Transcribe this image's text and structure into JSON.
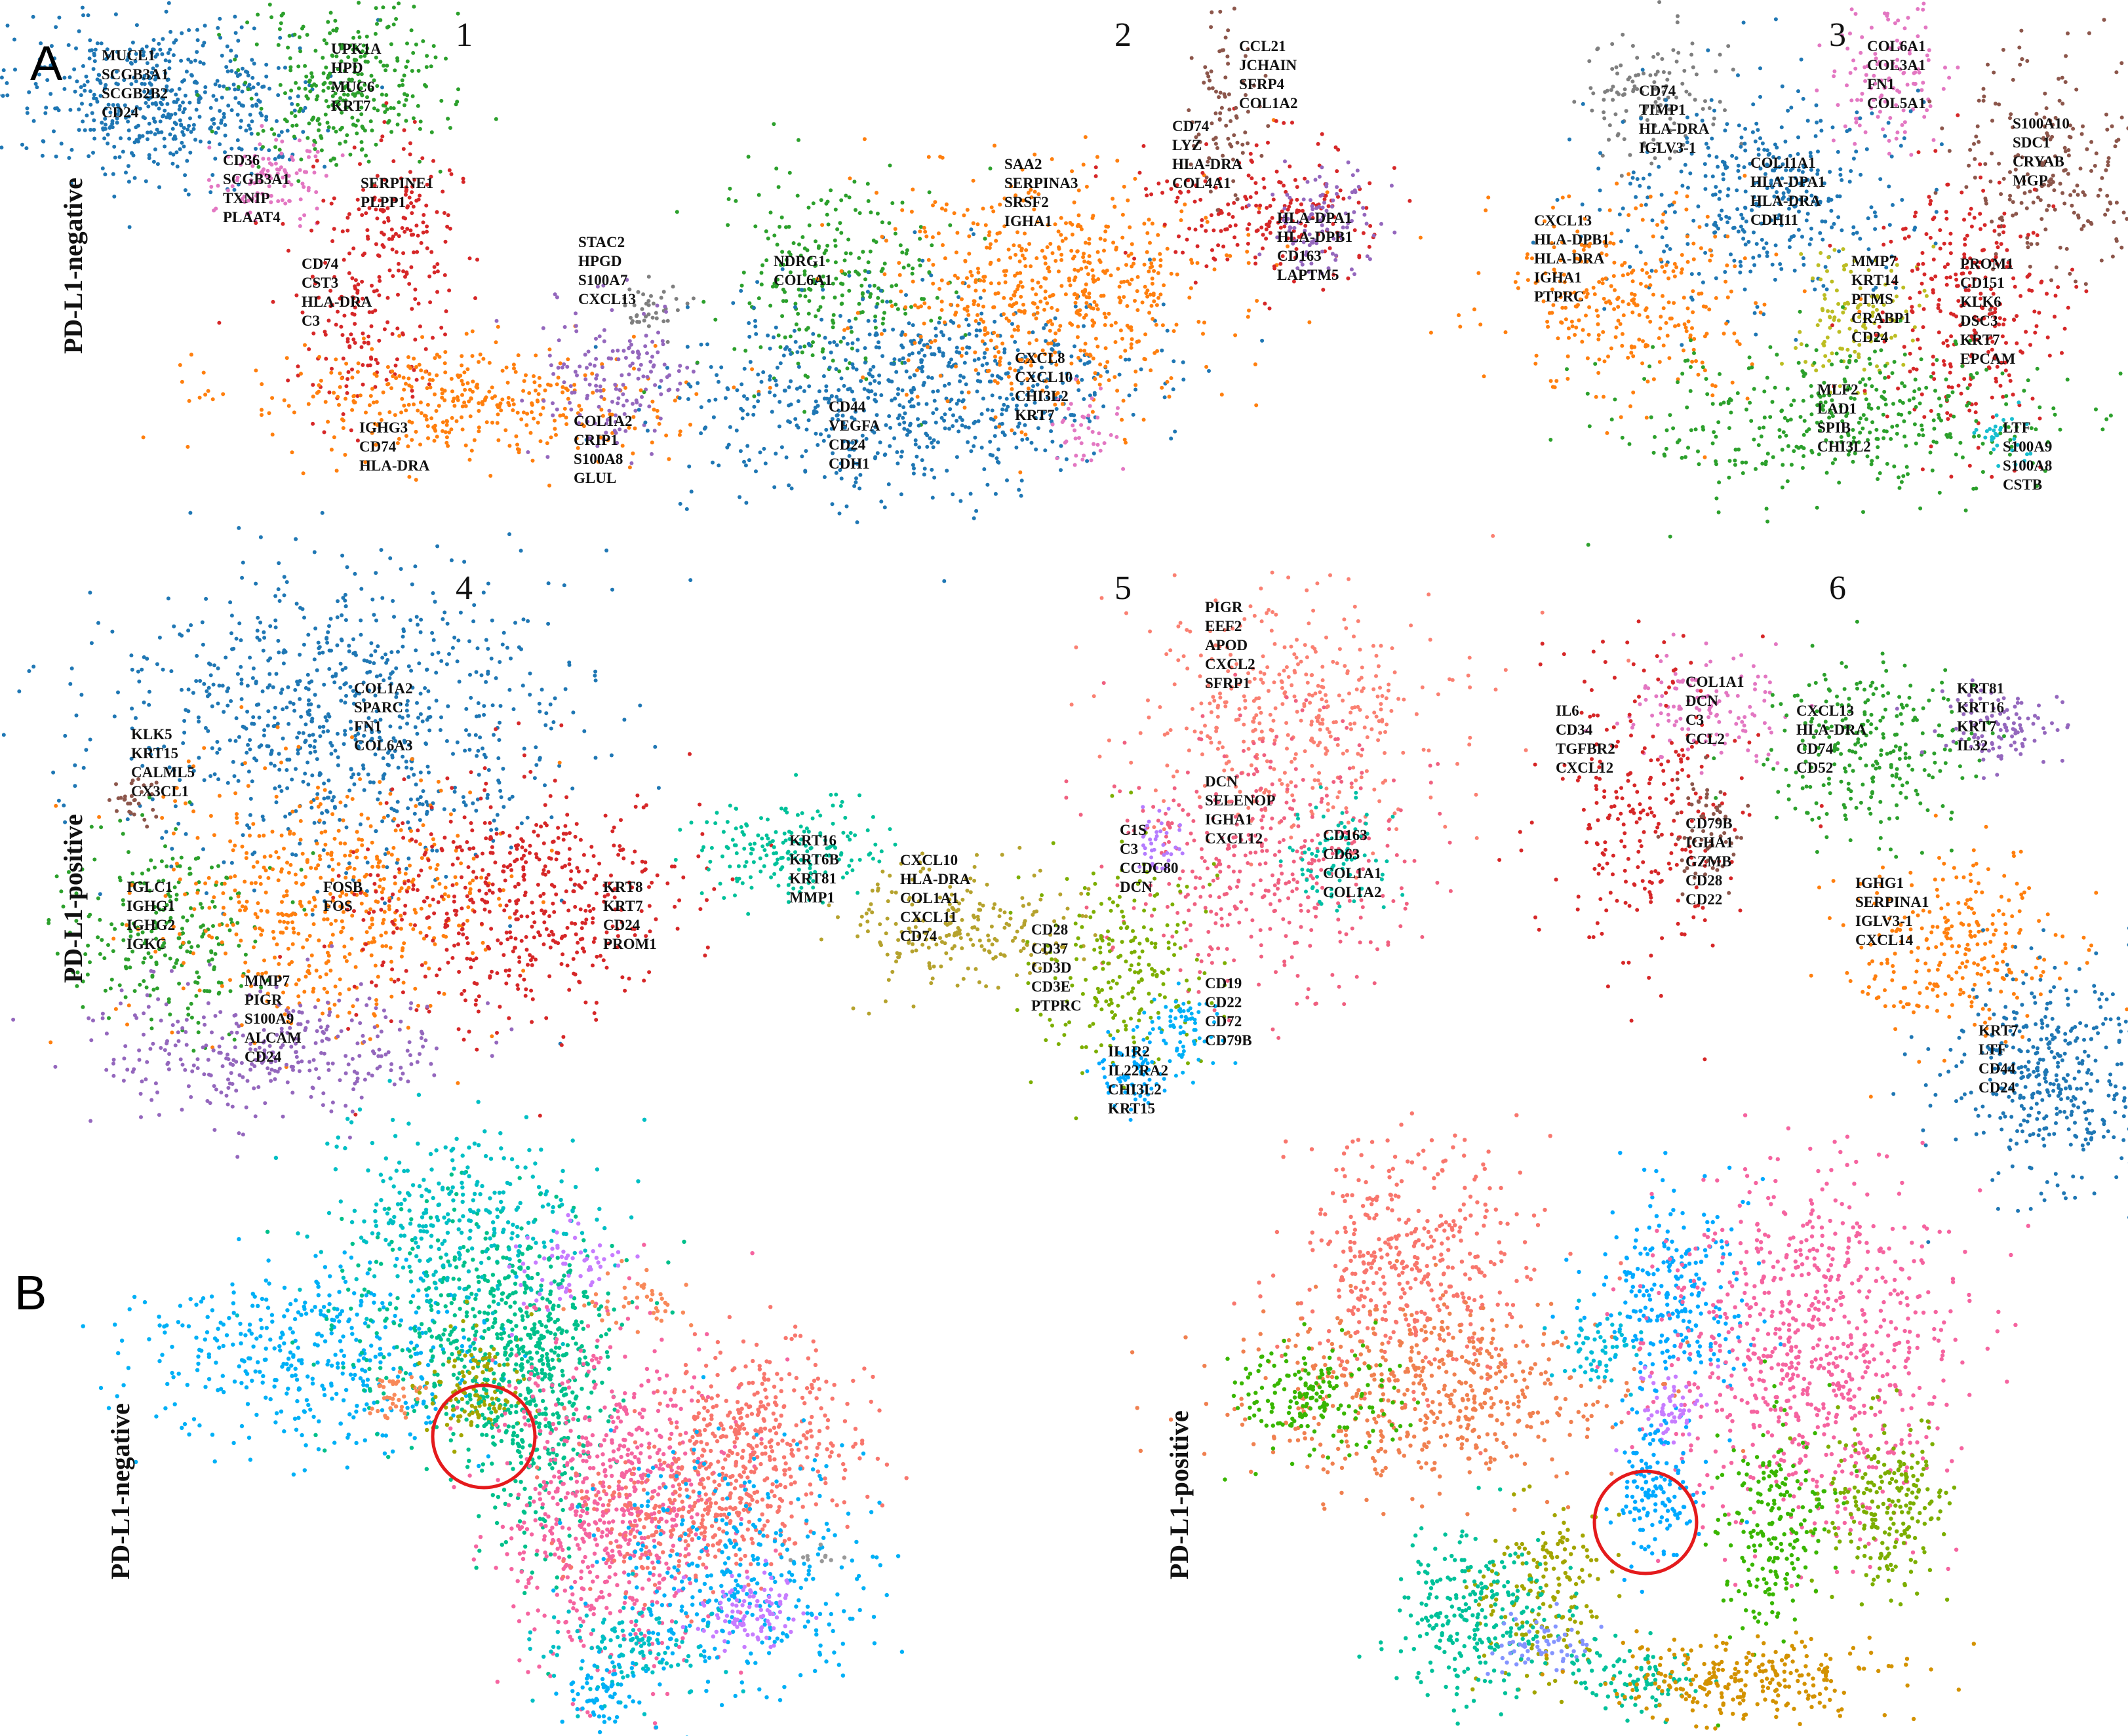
{
  "panel_letters": [
    "A",
    "B"
  ],
  "row_labels": [
    "PD-L1-negative",
    "PD-L1-positive"
  ],
  "chart_data": [
    {
      "type": "scatter",
      "panel": "A",
      "title": "1",
      "clusters": [
        {
          "color": "#1f77b4",
          "genes": [
            "MUCL1",
            "SCGB3A1",
            "SCGB2B2",
            "CD24"
          ]
        },
        {
          "color": "#2ca02c",
          "genes": [
            "UPK1A",
            "HPD",
            "MUC6",
            "KRT7"
          ]
        },
        {
          "color": "#e377c2",
          "genes": [
            "CD36",
            "SCGB3A1",
            "TXNIP",
            "PLAAT4"
          ]
        },
        {
          "color": "#d62728",
          "genes": [
            "SERPINE1",
            "PLPP1"
          ]
        },
        {
          "color": "#d62728",
          "genes": [
            "CD74",
            "CST3",
            "HLA-DRA",
            "C3"
          ]
        },
        {
          "color": "#7f7f7f",
          "genes": [
            "STAC2",
            "HPGD",
            "S100A7",
            "CXCL13"
          ]
        },
        {
          "color": "#ff7f0e",
          "genes": [
            "IGHG3",
            "CD74",
            "HLA-DRA"
          ]
        },
        {
          "color": "#9467bd",
          "genes": [
            "COL1A2",
            "CRIP1",
            "S100A8",
            "GLUL"
          ]
        }
      ]
    },
    {
      "type": "scatter",
      "panel": "A",
      "title": "2",
      "clusters": [
        {
          "color": "#8c564b",
          "genes": [
            "CCL21",
            "JCHAIN",
            "SFRP4",
            "COL1A2"
          ]
        },
        {
          "color": "#d62728",
          "genes": [
            "CD74",
            "LYZ",
            "HLA-DRA",
            "COL4A1"
          ]
        },
        {
          "color": "#ff7f0e",
          "genes": [
            "SAA2",
            "SERPINA3",
            "SRSF2",
            "IGHA1"
          ]
        },
        {
          "color": "#9467bd",
          "genes": [
            "HLA-DPA1",
            "HLA-DPB1",
            "CD163",
            "LAPTM5"
          ]
        },
        {
          "color": "#2ca02c",
          "genes": [
            "NDRG1",
            "COL6A1"
          ]
        },
        {
          "color": "#e377c2",
          "genes": [
            "CXCL8",
            "CXCL10",
            "CHI3L2",
            "KRT7"
          ]
        },
        {
          "color": "#1f77b4",
          "genes": [
            "CD44",
            "VEGFA",
            "CD24",
            "CDH1"
          ]
        }
      ]
    },
    {
      "type": "scatter",
      "panel": "A",
      "title": "3",
      "clusters": [
        {
          "color": "#7f7f7f",
          "genes": [
            "CD74",
            "TIMP1",
            "HLA-DRA",
            "IGLV3-1"
          ]
        },
        {
          "color": "#e377c2",
          "genes": [
            "COL6A1",
            "COL3A1",
            "FN1",
            "COL5A1"
          ]
        },
        {
          "color": "#8c564b",
          "genes": [
            "S100A10",
            "SDC1",
            "CRYAB",
            "MGP"
          ]
        },
        {
          "color": "#1f77b4",
          "genes": [
            "COL11A1",
            "HLA-DPA1",
            "HLA-DRA",
            "CDH11"
          ]
        },
        {
          "color": "#ff7f0e",
          "genes": [
            "CXCL13",
            "HLA-DPB1",
            "HLA-DRA",
            "IGHA1",
            "PTPRC"
          ]
        },
        {
          "color": "#bcbd22",
          "genes": [
            "MMP7",
            "KRT14",
            "PTMS",
            "CRABP1",
            "CD24"
          ]
        },
        {
          "color": "#d62728",
          "genes": [
            "PROM1",
            "CD151",
            "KLK6",
            "DSC3",
            "KRT7",
            "EPCAM"
          ]
        },
        {
          "color": "#2ca02c",
          "genes": [
            "MLF2",
            "LAD1",
            "SPIB",
            "CHI3L2"
          ]
        },
        {
          "color": "#17becf",
          "genes": [
            "LTF",
            "S100A9",
            "S100A8",
            "CSTB"
          ]
        }
      ]
    },
    {
      "type": "scatter",
      "panel": "A",
      "title": "4",
      "clusters": [
        {
          "color": "#1f77b4",
          "genes": [
            "COL1A2",
            "SPARC",
            "FN1",
            "COL6A3"
          ]
        },
        {
          "color": "#8c564b",
          "genes": [
            "KLK5",
            "KRT15",
            "CALML5",
            "CX3CL1"
          ]
        },
        {
          "color": "#2ca02c",
          "genes": [
            "IGLC1",
            "IGHG1",
            "IGHG2",
            "IGKC"
          ]
        },
        {
          "color": "#ff7f0e",
          "genes": [
            "FOSB",
            "FOS"
          ]
        },
        {
          "color": "#d62728",
          "genes": [
            "KRT8",
            "KRT7",
            "CD24",
            "PROM1"
          ]
        },
        {
          "color": "#9467bd",
          "genes": [
            "MMP7",
            "PIGR",
            "S100A9",
            "ALCAM",
            "CD24"
          ]
        }
      ]
    },
    {
      "type": "scatter",
      "panel": "A",
      "title": "5",
      "clusters": [
        {
          "color": "#fa8072",
          "genes": [
            "PIGR",
            "EEF2",
            "APOD",
            "CXCL2",
            "SFRP1"
          ]
        },
        {
          "color": "#f06080",
          "genes": [
            "DCN",
            "SELENOP",
            "IGHA1",
            "CXCL12"
          ]
        },
        {
          "color": "#b47cff",
          "genes": [
            "C1S",
            "C3",
            "CCDC80",
            "DCN"
          ]
        },
        {
          "color": "#00bfa5",
          "genes": [
            "CD163",
            "CD63",
            "COL1A1",
            "COL1A2"
          ]
        },
        {
          "color": "#00c19a",
          "genes": [
            "KRT16",
            "KRT6B",
            "KRT81",
            "MMP1"
          ]
        },
        {
          "color": "#b5a22d",
          "genes": [
            "CXCL10",
            "HLA-DRA",
            "COL1A1",
            "CXCL11",
            "CD74"
          ]
        },
        {
          "color": "#7cae00",
          "genes": [
            "CD28",
            "CD37",
            "CD3D",
            "CD3E",
            "PTPRC"
          ]
        },
        {
          "color": "#00b0f6",
          "genes": [
            "CD19",
            "CD22",
            "CD72",
            "CD79B"
          ]
        },
        {
          "color": "#00a9ff",
          "genes": [
            "IL1R2",
            "IL22RA2",
            "CHI3L2",
            "KRT15"
          ]
        }
      ]
    },
    {
      "type": "scatter",
      "panel": "A",
      "title": "6",
      "clusters": [
        {
          "color": "#e377c2",
          "genes": [
            "COL1A1",
            "DCN",
            "C3",
            "CCL2"
          ]
        },
        {
          "color": "#d62728",
          "genes": [
            "IL6",
            "CD34",
            "TGFBR2",
            "CXCL12"
          ]
        },
        {
          "color": "#2ca02c",
          "genes": [
            "CXCL13",
            "HLA-DRA",
            "CD74",
            "CD52"
          ]
        },
        {
          "color": "#9467bd",
          "genes": [
            "KRT81",
            "KRT16",
            "KRT7",
            "IL32"
          ]
        },
        {
          "color": "#8c564b",
          "genes": [
            "CD79B",
            "IGHA1",
            "GZMB",
            "CD28",
            "CD22"
          ]
        },
        {
          "color": "#ff7f0e",
          "genes": [
            "IGHG1",
            "SERPINA1",
            "IGLV3-1",
            "CXCL14"
          ]
        },
        {
          "color": "#1f77b4",
          "genes": [
            "KRT7",
            "LTF",
            "CD44",
            "CD24"
          ]
        }
      ]
    },
    {
      "type": "scatter",
      "panel": "B",
      "row_label": "PD-L1-negative",
      "highlight": {
        "shape": "circle",
        "color": "#e41a1c",
        "cluster_color": "#a3a500"
      },
      "palette": [
        "#00b0f6",
        "#00c08b",
        "#00bfc4",
        "#f8766d",
        "#f564a0",
        "#619cff",
        "#c77cff",
        "#a3a500",
        "#f8895a",
        "#999999"
      ]
    },
    {
      "type": "scatter",
      "panel": "B",
      "row_label": "PD-L1-positive",
      "highlight": {
        "shape": "circle",
        "color": "#e41a1c",
        "cluster_color": "#00a9ff"
      },
      "palette": [
        "#f8766d",
        "#00a9ff",
        "#f564a0",
        "#f08050",
        "#39b600",
        "#7cae00",
        "#00c19a",
        "#a3a500",
        "#d39200",
        "#c77cff",
        "#00bcd8",
        "#8494ff"
      ]
    }
  ]
}
